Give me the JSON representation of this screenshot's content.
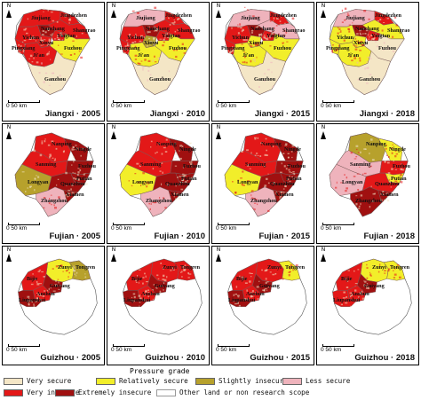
{
  "colors": {
    "very_secure": "#f4e6c6",
    "relatively_secure": "#f2ee2a",
    "slightly_insecure": "#b7a12c",
    "less_secure": "#efb3bc",
    "very_insecure": "#e31818",
    "extremely_insecure": "#a01010",
    "other": "#ffffff"
  },
  "north_label": "N",
  "scale_label": "0    50 km",
  "rows": [
    {
      "province": "Jiangxi",
      "shape": "jiangxi",
      "cities": [
        "Jiujiang",
        "Jingdezhen",
        "Nanchang",
        "Shangrao",
        "Yichun",
        "Yingtan",
        "Xinyu",
        "Fuzhou",
        "Pingxiang",
        "Ji'an",
        "Ganzhou"
      ],
      "panels": [
        {
          "caption": "Jiangxi · 2005",
          "year": "2005",
          "regions": {
            "Jiujiang": "very_insecure",
            "Jingdezhen": "very_insecure",
            "Nanchang": "extremely_insecure",
            "Shangrao": "very_insecure",
            "Yichun": "very_insecure",
            "Yingtan": "very_insecure",
            "Xinyu": "very_insecure",
            "Fuzhou": "relatively_secure",
            "Pingxiang": "very_insecure",
            "Ji'an": "very_insecure",
            "Ganzhou": "very_secure"
          }
        },
        {
          "caption": "Jiangxi · 2010",
          "year": "2010",
          "regions": {
            "Jiujiang": "less_secure",
            "Jingdezhen": "very_insecure",
            "Nanchang": "extremely_insecure",
            "Shangrao": "very_insecure",
            "Yichun": "very_insecure",
            "Yingtan": "very_insecure",
            "Xinyu": "slightly_insecure",
            "Fuzhou": "relatively_secure",
            "Pingxiang": "very_insecure",
            "Ji'an": "relatively_secure",
            "Ganzhou": "very_secure"
          }
        },
        {
          "caption": "Jiangxi · 2015",
          "year": "2015",
          "regions": {
            "Jiujiang": "less_secure",
            "Jingdezhen": "very_insecure",
            "Nanchang": "extremely_insecure",
            "Shangrao": "less_secure",
            "Yichun": "very_insecure",
            "Yingtan": "very_insecure",
            "Xinyu": "relatively_secure",
            "Fuzhou": "relatively_secure",
            "Pingxiang": "very_insecure",
            "Ji'an": "relatively_secure",
            "Ganzhou": "very_secure"
          }
        },
        {
          "caption": "Jiangxi · 2018",
          "year": "2018",
          "regions": {
            "Jiujiang": "less_secure",
            "Jingdezhen": "very_insecure",
            "Nanchang": "extremely_insecure",
            "Shangrao": "relatively_secure",
            "Yichun": "relatively_secure",
            "Yingtan": "very_insecure",
            "Xinyu": "relatively_secure",
            "Fuzhou": "very_secure",
            "Pingxiang": "relatively_secure",
            "Ji'an": "relatively_secure",
            "Ganzhou": "very_secure"
          }
        }
      ]
    },
    {
      "province": "Fujian",
      "shape": "fujian",
      "cities": [
        "Nanping",
        "Ningde",
        "Sanming",
        "Fuzhou",
        "Putian",
        "Longyan",
        "Quanzhou",
        "Zhangzhou",
        "Xiamen"
      ],
      "panels": [
        {
          "caption": "Fujian · 2005",
          "year": "2005",
          "regions": {
            "Nanping": "very_insecure",
            "Ningde": "extremely_insecure",
            "Sanming": "very_insecure",
            "Fuzhou": "extremely_insecure",
            "Putian": "extremely_insecure",
            "Longyan": "slightly_insecure",
            "Quanzhou": "extremely_insecure",
            "Zhangzhou": "less_secure",
            "Xiamen": "extremely_insecure"
          }
        },
        {
          "caption": "Fujian · 2010",
          "year": "2010",
          "regions": {
            "Nanping": "very_insecure",
            "Ningde": "extremely_insecure",
            "Sanming": "very_insecure",
            "Fuzhou": "extremely_insecure",
            "Putian": "extremely_insecure",
            "Longyan": "relatively_secure",
            "Quanzhou": "extremely_insecure",
            "Zhangzhou": "less_secure",
            "Xiamen": "extremely_insecure"
          }
        },
        {
          "caption": "Fujian · 2015",
          "year": "2015",
          "regions": {
            "Nanping": "very_insecure",
            "Ningde": "extremely_insecure",
            "Sanming": "very_insecure",
            "Fuzhou": "extremely_insecure",
            "Putian": "extremely_insecure",
            "Longyan": "relatively_secure",
            "Quanzhou": "extremely_insecure",
            "Zhangzhou": "less_secure",
            "Xiamen": "extremely_insecure"
          }
        },
        {
          "caption": "Fujian · 2018",
          "year": "2018",
          "regions": {
            "Nanping": "slightly_insecure",
            "Ningde": "relatively_secure",
            "Sanming": "less_secure",
            "Fuzhou": "very_insecure",
            "Putian": "relatively_secure",
            "Longyan": "less_secure",
            "Quanzhou": "very_insecure",
            "Zhangzhou": "extremely_insecure",
            "Xiamen": "extremely_insecure"
          }
        }
      ]
    },
    {
      "province": "Guizhou",
      "shape": "guizhou",
      "cities": [
        "Zunyi",
        "Tongren",
        "Bijie",
        "Guiyang",
        "Anshun",
        "Liupanshui"
      ],
      "panels": [
        {
          "caption": "Guizhou · 2005",
          "year": "2005",
          "regions": {
            "Zunyi": "relatively_secure",
            "Tongren": "slightly_insecure",
            "Bijie": "very_insecure",
            "Guiyang": "extremely_insecure",
            "Anshun": "very_insecure",
            "Liupanshui": "extremely_insecure"
          }
        },
        {
          "caption": "Guizhou · 2010",
          "year": "2010",
          "regions": {
            "Zunyi": "very_insecure",
            "Tongren": "very_insecure",
            "Bijie": "very_insecure",
            "Guiyang": "extremely_insecure",
            "Anshun": "very_insecure",
            "Liupanshui": "extremely_insecure"
          }
        },
        {
          "caption": "Guizhou · 2015",
          "year": "2015",
          "regions": {
            "Zunyi": "very_insecure",
            "Tongren": "relatively_secure",
            "Bijie": "very_insecure",
            "Guiyang": "extremely_insecure",
            "Anshun": "very_insecure",
            "Liupanshui": "extremely_insecure"
          }
        },
        {
          "caption": "Guizhou · 2018",
          "year": "2018",
          "regions": {
            "Zunyi": "relatively_secure",
            "Tongren": "relatively_secure",
            "Bijie": "very_insecure",
            "Guiyang": "extremely_insecure",
            "Anshun": "very_insecure",
            "Liupanshui": "very_insecure"
          }
        }
      ]
    }
  ],
  "legend": {
    "title": "Pressure grade",
    "items": [
      {
        "key": "very_secure",
        "label": "Very secure"
      },
      {
        "key": "relatively_secure",
        "label": "Relatively secure"
      },
      {
        "key": "slightly_insecure",
        "label": "Slightly insecure"
      },
      {
        "key": "less_secure",
        "label": "Less secure"
      },
      {
        "key": "very_insecure",
        "label": "Very insecure"
      },
      {
        "key": "extremely_insecure",
        "label": "Extremely insecure"
      },
      {
        "key": "other",
        "label": "Other land or non research scope"
      }
    ]
  }
}
